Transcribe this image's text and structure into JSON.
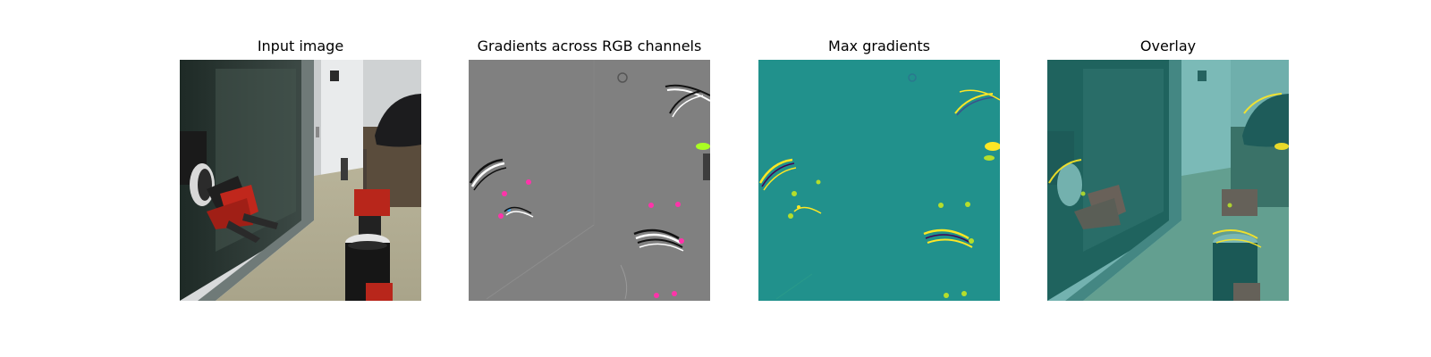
{
  "figure": {
    "panels": [
      {
        "title": "Input image"
      },
      {
        "title": "Gradients across RGB channels"
      },
      {
        "title": "Max gradients"
      },
      {
        "title": "Overlay"
      }
    ]
  },
  "colors": {
    "gradient_gray": "#808080",
    "viridis_teal": "#21918c",
    "viridis_yellow": "#fde725",
    "robot_red": "#c0271c"
  }
}
